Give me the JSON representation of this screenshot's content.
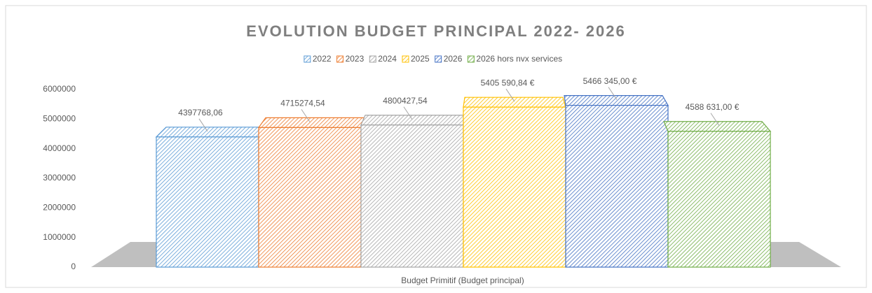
{
  "chart_data": {
    "type": "bar3d",
    "title": "EVOLUTION BUDGET PRINCIPAL 2022- 2026",
    "categories": [
      "Budget Primitif (Budget principal)"
    ],
    "series": [
      {
        "name": "2022",
        "color": "#5b9bd5",
        "values": [
          4397768.06
        ],
        "value_labels": [
          "4397768,06"
        ]
      },
      {
        "name": "2023",
        "color": "#ed7d31",
        "values": [
          4715274.54
        ],
        "value_labels": [
          "4715274,54"
        ]
      },
      {
        "name": "2024",
        "color": "#a5a5a5",
        "values": [
          4800427.54
        ],
        "value_labels": [
          "4800427,54"
        ]
      },
      {
        "name": "2025",
        "color": "#ffc000",
        "values": [
          5405590.84
        ],
        "value_labels": [
          "5405 590,84 €"
        ]
      },
      {
        "name": "2026",
        "color": "#4472c4",
        "values": [
          5466345.0
        ],
        "value_labels": [
          "5466 345,00 €"
        ]
      },
      {
        "name": "2026 hors nvx services",
        "color": "#70ad47",
        "values": [
          4588631.0
        ],
        "value_labels": [
          "4588 631,00 €"
        ]
      }
    ],
    "ylim": [
      0,
      6000000
    ],
    "yticks": [
      0,
      1000000,
      2000000,
      3000000,
      4000000,
      5000000,
      6000000
    ],
    "legend": "top"
  }
}
